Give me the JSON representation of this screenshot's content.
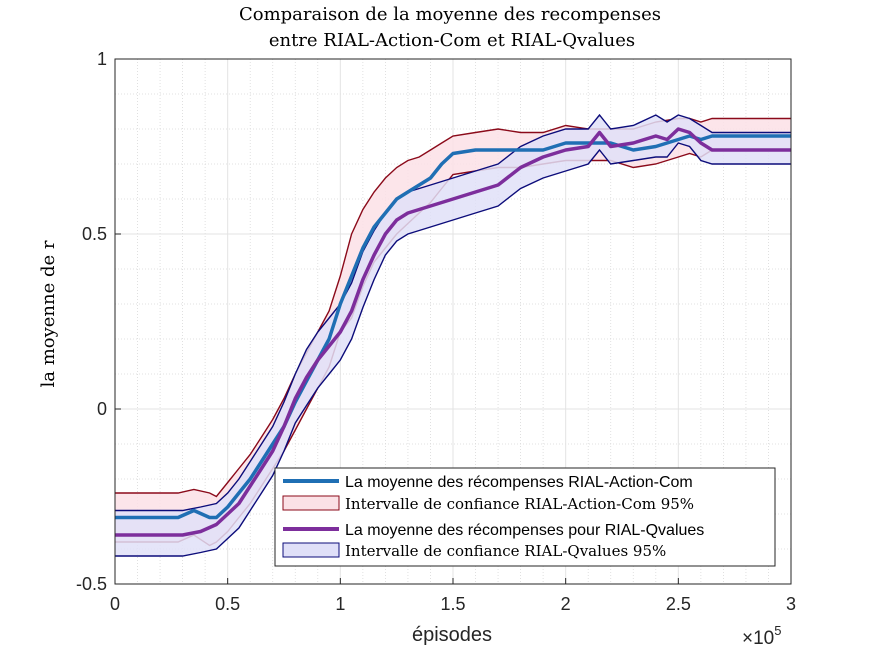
{
  "chart_data": {
    "type": "line",
    "title_line1": "Comparaison de la moyenne des recompenses",
    "title_line2": "entre RIAL-Action-Com et RIAL-Qvalues",
    "xlabel": "épisodes",
    "ylabel": "la moyenne de r",
    "x_exponent_base": "×10",
    "x_exponent_power": "5",
    "xlim": [
      0,
      3
    ],
    "ylim": [
      -0.5,
      1
    ],
    "xticks": [
      0,
      0.5,
      1,
      1.5,
      2,
      2.5,
      3
    ],
    "xtick_labels": [
      "0",
      "0.5",
      "1",
      "1.5",
      "2",
      "2.5",
      "3"
    ],
    "yticks": [
      -0.5,
      0,
      0.5,
      1
    ],
    "ytick_labels": [
      "-0.5",
      "0",
      "0.5",
      "1"
    ],
    "grid": true,
    "minor_grid": true,
    "legend_position": "bottom-right",
    "legend": [
      "La moyenne des récompenses RIAL-Action-Com",
      "Intervalle de confiance RIAL-Action-Com 95%",
      "La moyenne des récompenses pour RIAL-Qvalues",
      "Intervalle de confiance RIAL-Qvalues 95%"
    ],
    "series": [
      {
        "name": "La moyenne des récompenses RIAL-Action-Com",
        "color": "#1f6fb4",
        "x": [
          0,
          0.28,
          0.35,
          0.42,
          0.45,
          0.5,
          0.55,
          0.6,
          0.65,
          0.7,
          0.75,
          0.8,
          0.85,
          0.9,
          0.95,
          1.0,
          1.05,
          1.1,
          1.15,
          1.2,
          1.25,
          1.3,
          1.35,
          1.4,
          1.45,
          1.5,
          1.6,
          1.7,
          1.8,
          1.9,
          2.0,
          2.1,
          2.2,
          2.3,
          2.4,
          2.5,
          2.55,
          2.6,
          2.65,
          3.0
        ],
        "y": [
          -0.31,
          -0.31,
          -0.29,
          -0.31,
          -0.31,
          -0.28,
          -0.24,
          -0.2,
          -0.15,
          -0.1,
          -0.05,
          0.02,
          0.08,
          0.14,
          0.2,
          0.3,
          0.38,
          0.46,
          0.52,
          0.56,
          0.6,
          0.62,
          0.64,
          0.66,
          0.7,
          0.73,
          0.74,
          0.74,
          0.74,
          0.74,
          0.76,
          0.76,
          0.76,
          0.74,
          0.75,
          0.77,
          0.78,
          0.77,
          0.78,
          0.78
        ]
      },
      {
        "name": "La moyenne des récompenses pour RIAL-Qvalues",
        "color": "#7d2e9c",
        "x": [
          0,
          0.3,
          0.38,
          0.45,
          0.5,
          0.55,
          0.6,
          0.65,
          0.7,
          0.75,
          0.8,
          0.85,
          0.9,
          0.95,
          1.0,
          1.05,
          1.1,
          1.15,
          1.2,
          1.25,
          1.3,
          1.35,
          1.4,
          1.5,
          1.6,
          1.7,
          1.8,
          1.9,
          2.0,
          2.1,
          2.15,
          2.2,
          2.3,
          2.4,
          2.45,
          2.5,
          2.55,
          2.6,
          2.65,
          3.0
        ],
        "y": [
          -0.36,
          -0.36,
          -0.35,
          -0.33,
          -0.3,
          -0.27,
          -0.22,
          -0.17,
          -0.12,
          -0.05,
          0.03,
          0.09,
          0.14,
          0.18,
          0.22,
          0.28,
          0.37,
          0.44,
          0.5,
          0.54,
          0.56,
          0.57,
          0.58,
          0.6,
          0.62,
          0.64,
          0.69,
          0.72,
          0.74,
          0.75,
          0.79,
          0.75,
          0.76,
          0.78,
          0.77,
          0.8,
          0.79,
          0.76,
          0.74,
          0.74
        ]
      }
    ],
    "bands": [
      {
        "name": "Intervalle de confiance RIAL-Action-Com 95%",
        "fill": "#fbe1e6",
        "stroke": "#8b0a1a",
        "x": [
          0,
          0.28,
          0.35,
          0.42,
          0.45,
          0.5,
          0.55,
          0.6,
          0.65,
          0.7,
          0.75,
          0.8,
          0.85,
          0.9,
          0.95,
          1.0,
          1.05,
          1.1,
          1.15,
          1.2,
          1.25,
          1.3,
          1.35,
          1.4,
          1.45,
          1.5,
          1.6,
          1.7,
          1.8,
          1.9,
          2.0,
          2.1,
          2.2,
          2.3,
          2.4,
          2.5,
          2.55,
          2.6,
          2.65,
          3.0
        ],
        "upper": [
          -0.24,
          -0.24,
          -0.23,
          -0.24,
          -0.25,
          -0.21,
          -0.17,
          -0.13,
          -0.08,
          -0.03,
          0.03,
          0.1,
          0.16,
          0.22,
          0.28,
          0.38,
          0.5,
          0.57,
          0.62,
          0.66,
          0.69,
          0.71,
          0.72,
          0.74,
          0.76,
          0.78,
          0.79,
          0.8,
          0.79,
          0.79,
          0.81,
          0.8,
          0.8,
          0.8,
          0.82,
          0.83,
          0.83,
          0.82,
          0.83,
          0.83
        ],
        "lower": [
          -0.38,
          -0.38,
          -0.36,
          -0.39,
          -0.38,
          -0.35,
          -0.31,
          -0.27,
          -0.22,
          -0.17,
          -0.12,
          -0.06,
          0.0,
          0.06,
          0.12,
          0.22,
          0.26,
          0.35,
          0.42,
          0.46,
          0.5,
          0.53,
          0.56,
          0.59,
          0.63,
          0.67,
          0.68,
          0.69,
          0.69,
          0.7,
          0.71,
          0.71,
          0.71,
          0.69,
          0.7,
          0.72,
          0.73,
          0.72,
          0.74,
          0.74
        ]
      },
      {
        "name": "Intervalle de confiance RIAL-Qvalues 95%",
        "fill": "#e0e0f8",
        "stroke": "#0c0c7a",
        "x": [
          0,
          0.3,
          0.38,
          0.45,
          0.5,
          0.55,
          0.6,
          0.65,
          0.7,
          0.75,
          0.8,
          0.85,
          0.9,
          0.95,
          1.0,
          1.05,
          1.1,
          1.15,
          1.2,
          1.25,
          1.3,
          1.35,
          1.4,
          1.5,
          1.6,
          1.7,
          1.8,
          1.9,
          2.0,
          2.1,
          2.15,
          2.2,
          2.3,
          2.4,
          2.45,
          2.5,
          2.55,
          2.6,
          2.65,
          3.0
        ],
        "upper": [
          -0.29,
          -0.29,
          -0.28,
          -0.27,
          -0.24,
          -0.2,
          -0.15,
          -0.1,
          -0.05,
          0.02,
          0.1,
          0.17,
          0.22,
          0.26,
          0.3,
          0.36,
          0.45,
          0.51,
          0.56,
          0.6,
          0.62,
          0.63,
          0.64,
          0.66,
          0.68,
          0.7,
          0.75,
          0.78,
          0.8,
          0.8,
          0.84,
          0.8,
          0.81,
          0.84,
          0.82,
          0.84,
          0.83,
          0.81,
          0.79,
          0.79
        ],
        "lower": [
          -0.42,
          -0.42,
          -0.41,
          -0.4,
          -0.37,
          -0.34,
          -0.29,
          -0.24,
          -0.19,
          -0.12,
          -0.04,
          0.01,
          0.06,
          0.1,
          0.14,
          0.2,
          0.29,
          0.37,
          0.44,
          0.48,
          0.5,
          0.51,
          0.52,
          0.54,
          0.56,
          0.58,
          0.63,
          0.66,
          0.68,
          0.7,
          0.74,
          0.7,
          0.71,
          0.72,
          0.72,
          0.76,
          0.75,
          0.71,
          0.7,
          0.7
        ]
      }
    ]
  }
}
